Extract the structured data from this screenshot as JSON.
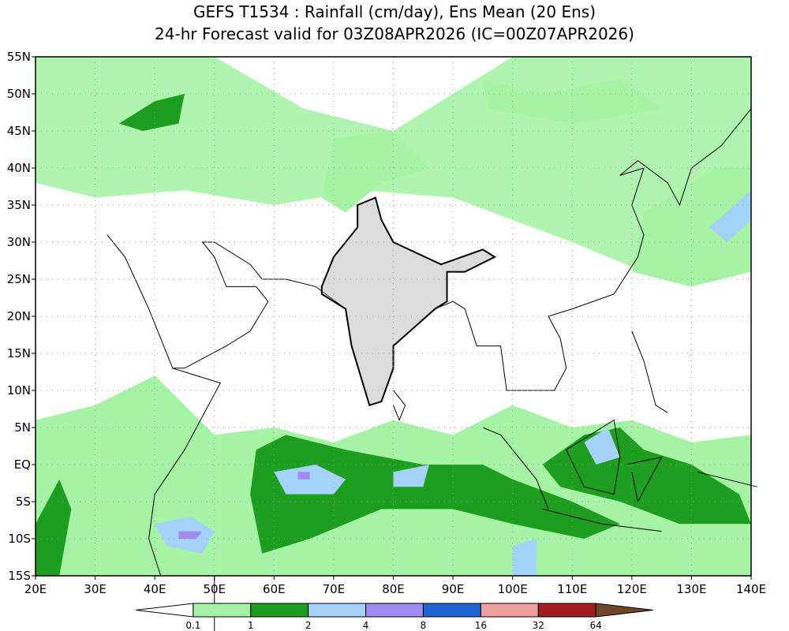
{
  "header": {
    "title": "GEFS T1534 : Rainfall (cm/day), Ens Mean (20 Ens)",
    "subtitle": "24-hr Forecast valid for 03Z08APR2026 (IC=00Z07APR2026)"
  },
  "map": {
    "lat_labels": [
      "55N",
      "50N",
      "45N",
      "40N",
      "35N",
      "30N",
      "25N",
      "20N",
      "15N",
      "10N",
      "5N",
      "EQ",
      "5S",
      "10S",
      "15S"
    ],
    "lon_labels": [
      "20E",
      "30E",
      "40E",
      "50E",
      "60E",
      "70E",
      "80E",
      "90E",
      "100E",
      "110E",
      "120E",
      "130E",
      "140E"
    ]
  },
  "colorbar": {
    "levels": [
      0.1,
      1,
      2,
      4,
      8,
      16,
      32,
      64
    ],
    "colors": [
      "#ffffff",
      "#a6f3a6",
      "#1e9e1e",
      "#a4d2fa",
      "#a08cf0",
      "#1e64d2",
      "#f0a0a0",
      "#a01e1e",
      "#6e4628"
    ]
  }
}
